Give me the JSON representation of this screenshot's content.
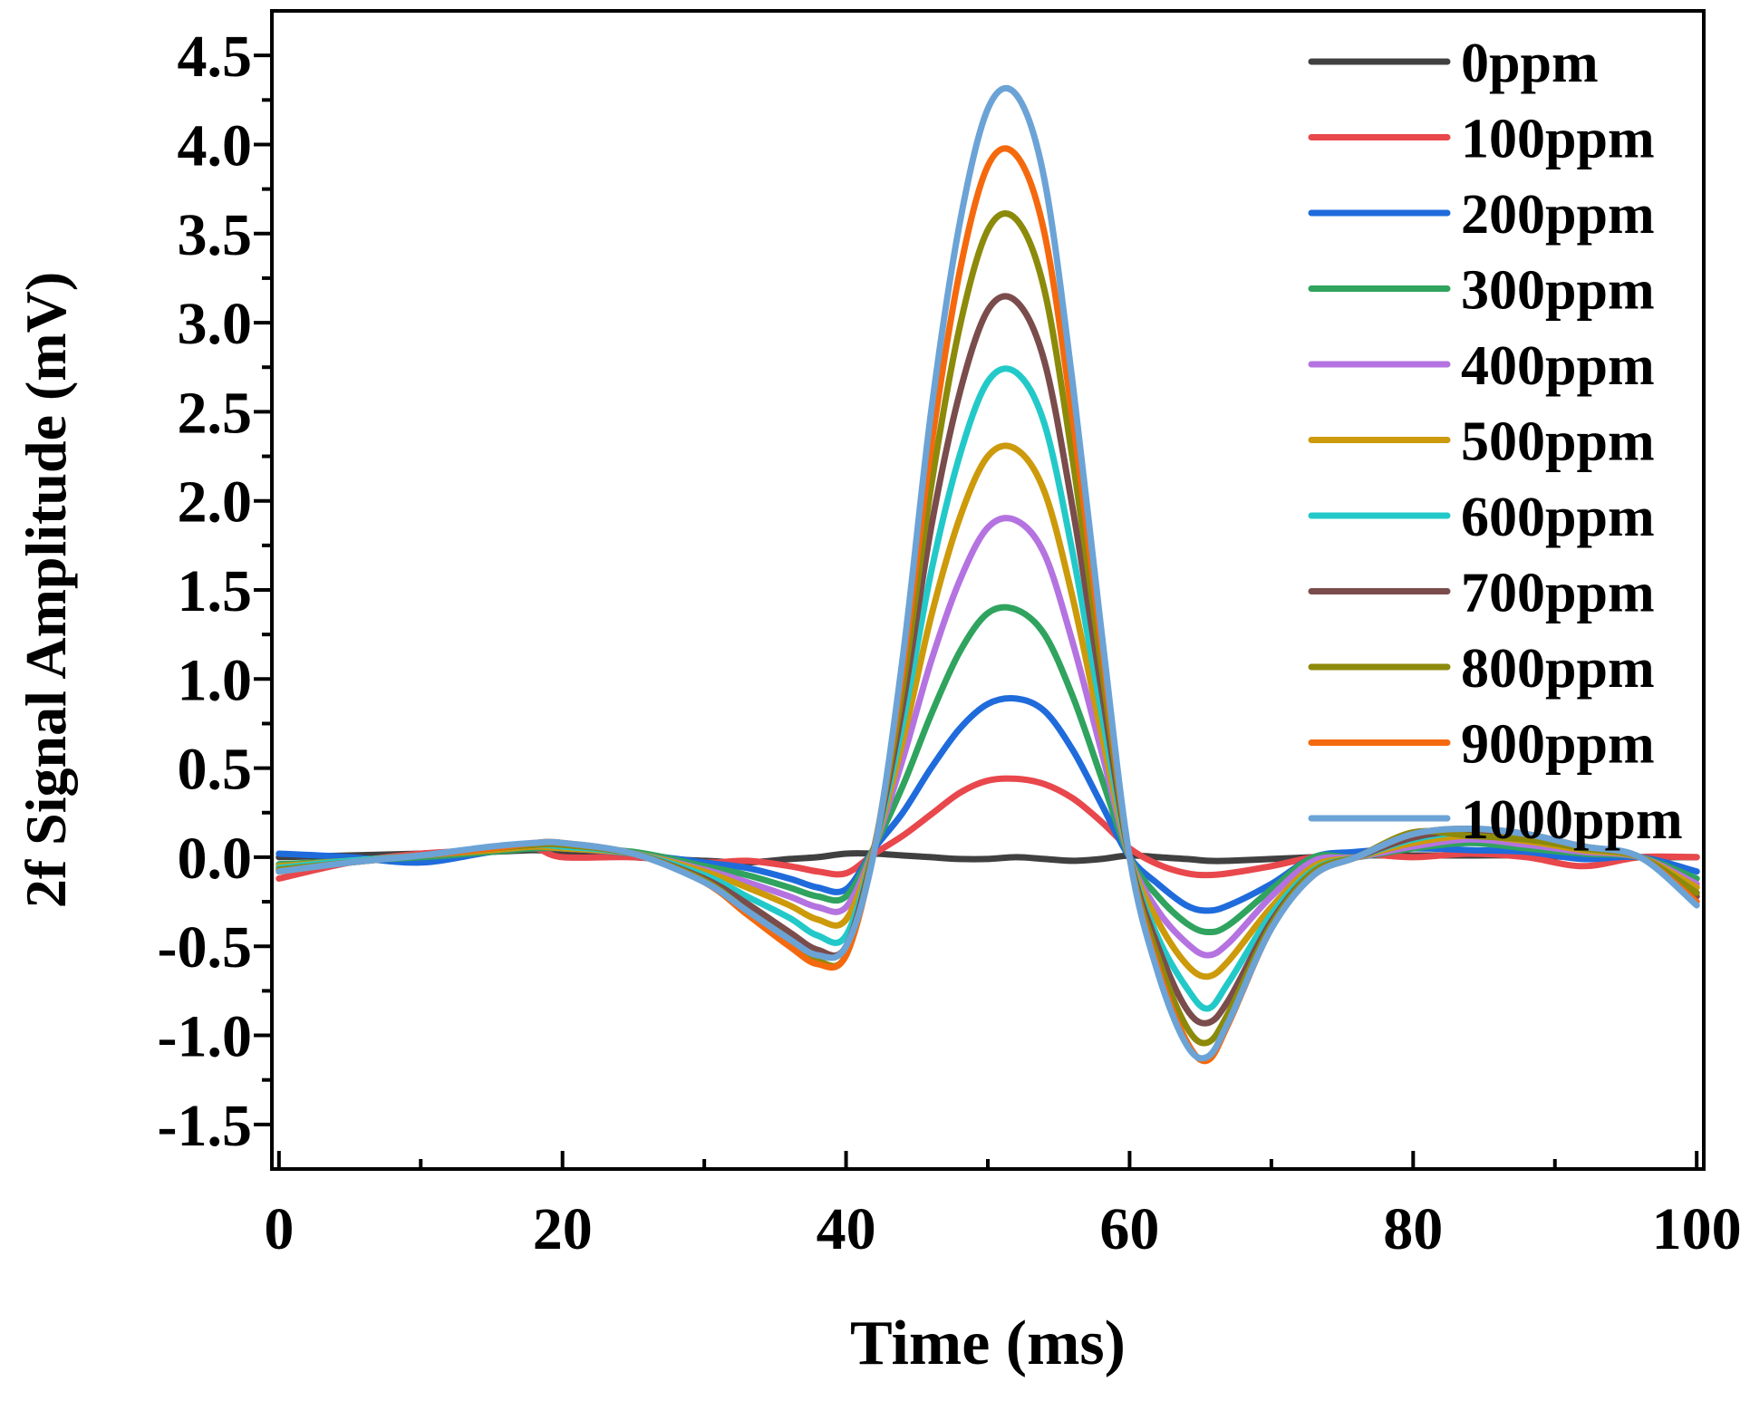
{
  "chart_data": {
    "type": "line",
    "title": "",
    "xlabel": "Time (ms)",
    "ylabel": "2f Signal Amplitude (mV)",
    "xlim": [
      -0.5,
      100.5
    ],
    "ylim": [
      -1.75,
      4.75
    ],
    "x_ticks": [
      0,
      20,
      40,
      60,
      80,
      100
    ],
    "x_tick_labels": [
      "0",
      "20",
      "40",
      "60",
      "80",
      "100"
    ],
    "x_minor_ticks": [
      10,
      30,
      50,
      70,
      90
    ],
    "y_ticks": [
      -1.5,
      -1.0,
      -0.5,
      0.0,
      0.5,
      1.0,
      1.5,
      2.0,
      2.5,
      3.0,
      3.5,
      4.0,
      4.5
    ],
    "y_tick_labels": [
      "-1.5",
      "-1.0",
      "-0.5",
      "0.0",
      "0.5",
      "1.0",
      "1.5",
      "2.0",
      "2.5",
      "3.0",
      "3.5",
      "4.0",
      "4.5"
    ],
    "y_minor_ticks": [
      -1.25,
      -0.75,
      -0.25,
      0.25,
      0.75,
      1.25,
      1.75,
      2.25,
      2.75,
      3.25,
      3.75,
      4.25
    ],
    "grid": false,
    "legend_position": "top-right",
    "x": [
      0,
      5,
      10,
      15,
      18,
      20,
      25,
      30,
      33,
      36,
      38,
      40,
      42,
      44,
      46,
      48,
      50,
      52,
      54,
      56,
      58,
      60,
      62,
      64,
      65.5,
      67,
      70,
      73,
      76,
      80,
      84,
      88,
      92,
      96,
      100
    ],
    "series": [
      {
        "name": "0ppm",
        "color": "#404040",
        "values": [
          0.0,
          0.01,
          0.02,
          0.03,
          0.04,
          0.03,
          0.0,
          -0.02,
          -0.03,
          -0.01,
          0.0,
          0.02,
          0.02,
          0.01,
          0.0,
          -0.01,
          -0.01,
          0.0,
          -0.01,
          -0.02,
          -0.01,
          0.01,
          0.0,
          -0.01,
          -0.02,
          -0.02,
          -0.01,
          0.0,
          0.01,
          0.01,
          0.01,
          0.01,
          0.0,
          0.0,
          0.0
        ]
      },
      {
        "name": "100ppm",
        "color": "#e8474c",
        "values": [
          -0.12,
          -0.03,
          0.02,
          0.04,
          0.05,
          0.0,
          0.0,
          -0.03,
          -0.02,
          -0.05,
          -0.08,
          -0.09,
          0.02,
          0.12,
          0.24,
          0.36,
          0.43,
          0.44,
          0.41,
          0.33,
          0.2,
          0.05,
          -0.04,
          -0.09,
          -0.1,
          -0.09,
          -0.05,
          0.0,
          0.02,
          0.0,
          0.02,
          0.0,
          -0.05,
          0.0,
          0.0
        ]
      },
      {
        "name": "200ppm",
        "color": "#1f6bdc",
        "values": [
          0.02,
          0.0,
          -0.03,
          0.03,
          0.05,
          0.05,
          0.02,
          -0.03,
          -0.06,
          -0.12,
          -0.17,
          -0.18,
          0.05,
          0.25,
          0.5,
          0.72,
          0.86,
          0.89,
          0.82,
          0.6,
          0.3,
          0.0,
          -0.15,
          -0.27,
          -0.3,
          -0.27,
          -0.15,
          0.0,
          0.03,
          0.05,
          0.04,
          0.03,
          -0.01,
          0.0,
          -0.08
        ]
      },
      {
        "name": "300ppm",
        "color": "#30a35e",
        "values": [
          -0.04,
          -0.02,
          0.0,
          0.03,
          0.05,
          0.05,
          0.03,
          -0.05,
          -0.1,
          -0.17,
          -0.22,
          -0.22,
          0.06,
          0.4,
          0.8,
          1.15,
          1.37,
          1.39,
          1.25,
          0.9,
          0.45,
          0.0,
          -0.22,
          -0.37,
          -0.42,
          -0.38,
          -0.18,
          0.0,
          0.0,
          0.05,
          0.08,
          0.05,
          0.02,
          0.0,
          -0.12
        ]
      },
      {
        "name": "400ppm",
        "color": "#b473e0",
        "values": [
          -0.05,
          -0.02,
          0.01,
          0.04,
          0.06,
          0.05,
          0.02,
          -0.07,
          -0.14,
          -0.22,
          -0.28,
          -0.28,
          0.06,
          0.55,
          1.1,
          1.55,
          1.85,
          1.89,
          1.7,
          1.2,
          0.6,
          0.0,
          -0.3,
          -0.48,
          -0.55,
          -0.48,
          -0.22,
          -0.02,
          0.0,
          0.06,
          0.1,
          0.07,
          0.03,
          0.0,
          -0.15
        ]
      },
      {
        "name": "500ppm",
        "color": "#cc9a0a",
        "values": [
          -0.05,
          -0.02,
          0.01,
          0.04,
          0.06,
          0.05,
          0.02,
          -0.08,
          -0.17,
          -0.27,
          -0.35,
          -0.35,
          0.06,
          0.65,
          1.35,
          1.9,
          2.25,
          2.29,
          2.05,
          1.45,
          0.7,
          0.0,
          -0.36,
          -0.6,
          -0.67,
          -0.58,
          -0.28,
          -0.05,
          0.0,
          0.08,
          0.12,
          0.09,
          0.04,
          0.0,
          -0.17
        ]
      },
      {
        "name": "600ppm",
        "color": "#23c9c9",
        "values": [
          -0.06,
          -0.02,
          0.01,
          0.05,
          0.07,
          0.06,
          0.02,
          -0.1,
          -0.22,
          -0.34,
          -0.44,
          -0.44,
          0.06,
          0.75,
          1.6,
          2.25,
          2.67,
          2.72,
          2.43,
          1.7,
          0.82,
          0.0,
          -0.45,
          -0.73,
          -0.85,
          -0.7,
          -0.32,
          -0.07,
          0.0,
          0.1,
          0.14,
          0.11,
          0.05,
          0.0,
          -0.2
        ]
      },
      {
        "name": "700ppm",
        "color": "#7a4c4c",
        "values": [
          -0.07,
          -0.03,
          0.01,
          0.05,
          0.07,
          0.07,
          0.02,
          -0.12,
          -0.26,
          -0.42,
          -0.52,
          -0.5,
          0.06,
          0.85,
          1.85,
          2.6,
          3.07,
          3.12,
          2.78,
          1.95,
          0.95,
          0.0,
          -0.5,
          -0.85,
          -0.93,
          -0.8,
          -0.36,
          -0.08,
          0.0,
          0.11,
          0.15,
          0.12,
          0.06,
          0.0,
          -0.22
        ]
      },
      {
        "name": "800ppm",
        "color": "#8c8a0a",
        "values": [
          -0.07,
          -0.03,
          0.01,
          0.05,
          0.07,
          0.07,
          0.02,
          -0.13,
          -0.3,
          -0.46,
          -0.58,
          -0.55,
          0.06,
          0.95,
          2.08,
          2.97,
          3.52,
          3.58,
          3.18,
          2.22,
          1.08,
          0.0,
          -0.56,
          -0.95,
          -1.04,
          -0.87,
          -0.38,
          -0.08,
          0.0,
          0.14,
          0.12,
          0.1,
          0.05,
          0.0,
          -0.2
        ]
      },
      {
        "name": "900ppm",
        "color": "#f5690e",
        "values": [
          -0.08,
          -0.03,
          0.01,
          0.05,
          0.08,
          0.08,
          0.02,
          -0.14,
          -0.32,
          -0.5,
          -0.6,
          -0.55,
          0.05,
          1.05,
          2.3,
          3.28,
          3.88,
          3.94,
          3.5,
          2.45,
          1.2,
          0.0,
          -0.62,
          -1.03,
          -1.14,
          -0.93,
          -0.4,
          -0.1,
          0.0,
          0.13,
          0.16,
          0.13,
          0.06,
          0.0,
          -0.25
        ]
      },
      {
        "name": "1000ppm",
        "color": "#6ba3d6",
        "values": [
          -0.08,
          -0.03,
          0.01,
          0.06,
          0.08,
          0.08,
          0.02,
          -0.14,
          -0.3,
          -0.46,
          -0.55,
          -0.5,
          0.04,
          1.12,
          2.5,
          3.55,
          4.2,
          4.28,
          3.8,
          2.65,
          1.28,
          0.0,
          -0.65,
          -1.05,
          -1.12,
          -0.92,
          -0.4,
          -0.1,
          0.0,
          0.13,
          0.16,
          0.13,
          0.06,
          0.0,
          -0.27
        ]
      }
    ]
  }
}
